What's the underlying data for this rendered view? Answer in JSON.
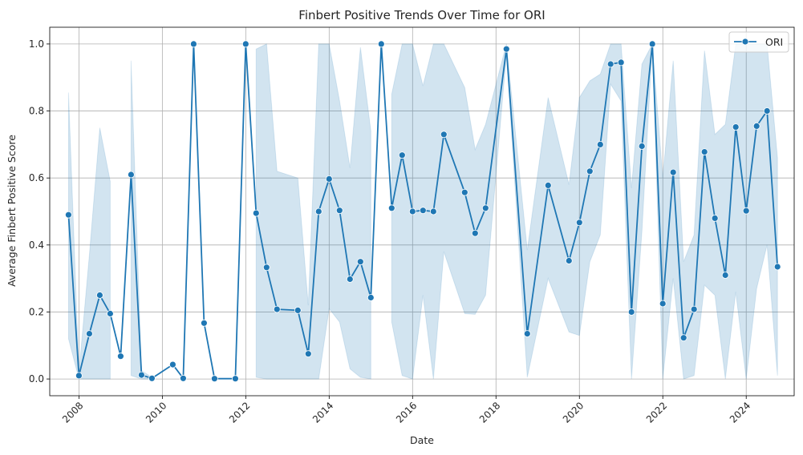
{
  "chart_data": {
    "type": "line",
    "title": "Finbert Positive Trends Over Time for ORI",
    "xlabel": "Date",
    "ylabel": "Average Finbert Positive Score",
    "xlim": [
      2007.3,
      2025.15
    ],
    "ylim": [
      -0.05,
      1.05
    ],
    "xticks": [
      2008,
      2010,
      2012,
      2014,
      2016,
      2018,
      2020,
      2022,
      2024
    ],
    "xtick_labels": [
      "2008",
      "2010",
      "2012",
      "2014",
      "2016",
      "2018",
      "2020",
      "2022",
      "2024"
    ],
    "yticks": [
      0.0,
      0.2,
      0.4,
      0.6,
      0.8,
      1.0
    ],
    "ytick_labels": [
      "0.0",
      "0.2",
      "0.4",
      "0.6",
      "0.8",
      "1.0"
    ],
    "grid": true,
    "legend_position": "top-right",
    "colors": {
      "line": "#1f77b4",
      "band": "#1f77b4",
      "grid": "#b0b0b0",
      "axis": "#000000"
    },
    "series": [
      {
        "name": "ORI",
        "x": [
          2007.75,
          2008.0,
          2008.25,
          2008.5,
          2008.75,
          2009.0,
          2009.25,
          2009.5,
          2009.75,
          2010.25,
          2010.5,
          2010.75,
          2011.0,
          2011.25,
          2011.75,
          2012.0,
          2012.25,
          2012.5,
          2012.75,
          2013.25,
          2013.5,
          2013.75,
          2014.0,
          2014.25,
          2014.5,
          2014.75,
          2015.0,
          2015.25,
          2015.5,
          2015.75,
          2016.0,
          2016.25,
          2016.5,
          2016.75,
          2017.25,
          2017.5,
          2017.75,
          2018.25,
          2018.75,
          2019.25,
          2019.75,
          2020.0,
          2020.25,
          2020.5,
          2020.75,
          2021.0,
          2021.25,
          2021.5,
          2021.75,
          2022.0,
          2022.25,
          2022.5,
          2022.75,
          2023.0,
          2023.25,
          2023.5,
          2023.75,
          2024.0,
          2024.25,
          2024.5,
          2024.75
        ],
        "y": [
          0.49,
          0.01,
          0.135,
          0.25,
          0.195,
          0.068,
          0.61,
          0.012,
          0.002,
          0.043,
          0.002,
          1.0,
          0.167,
          0.001,
          0.001,
          1.0,
          0.495,
          0.333,
          0.208,
          0.205,
          0.075,
          0.5,
          0.597,
          0.503,
          0.298,
          0.35,
          0.243,
          1.0,
          0.51,
          0.668,
          0.5,
          0.503,
          0.5,
          0.73,
          0.557,
          0.435,
          0.51,
          0.985,
          0.135,
          0.578,
          0.353,
          0.467,
          0.62,
          0.7,
          0.94,
          0.945,
          0.2,
          0.695,
          1.0,
          0.225,
          0.617,
          0.123,
          0.208,
          0.678,
          0.48,
          0.31,
          0.752,
          0.502,
          0.755,
          0.8,
          0.335
        ],
        "ci_low": [
          0.12,
          0.0,
          0.0,
          0.0,
          0.0,
          null,
          0.01,
          0.0,
          0.0,
          null,
          null,
          null,
          0.0,
          null,
          null,
          null,
          0.005,
          0.0,
          0.0,
          0.0,
          0.0,
          0.0,
          0.21,
          0.17,
          0.03,
          0.005,
          0.0,
          null,
          0.17,
          0.01,
          0.0,
          0.25,
          0.0,
          0.38,
          0.195,
          0.193,
          0.25,
          0.97,
          0.005,
          0.3,
          0.14,
          0.13,
          0.35,
          0.43,
          0.88,
          0.83,
          0.0,
          0.44,
          1.0,
          0.0,
          0.3,
          0.0,
          0.01,
          0.28,
          0.25,
          0.0,
          0.26,
          0.0,
          0.27,
          0.4,
          0.01
        ],
        "ci_high": [
          0.855,
          0.02,
          0.37,
          0.75,
          0.59,
          null,
          0.95,
          0.025,
          0.005,
          null,
          null,
          null,
          0.5,
          null,
          null,
          null,
          0.985,
          1.0,
          0.62,
          0.6,
          0.22,
          1.0,
          1.0,
          0.83,
          0.63,
          0.99,
          0.74,
          null,
          0.85,
          1.0,
          1.0,
          0.875,
          1.0,
          1.0,
          0.87,
          0.685,
          0.76,
          1.0,
          0.385,
          0.84,
          0.58,
          0.84,
          0.89,
          0.91,
          1.0,
          1.0,
          0.57,
          0.94,
          1.0,
          0.6,
          0.95,
          0.35,
          0.43,
          0.98,
          0.73,
          0.76,
          1.0,
          1.0,
          1.0,
          1.0,
          0.66
        ]
      }
    ]
  }
}
